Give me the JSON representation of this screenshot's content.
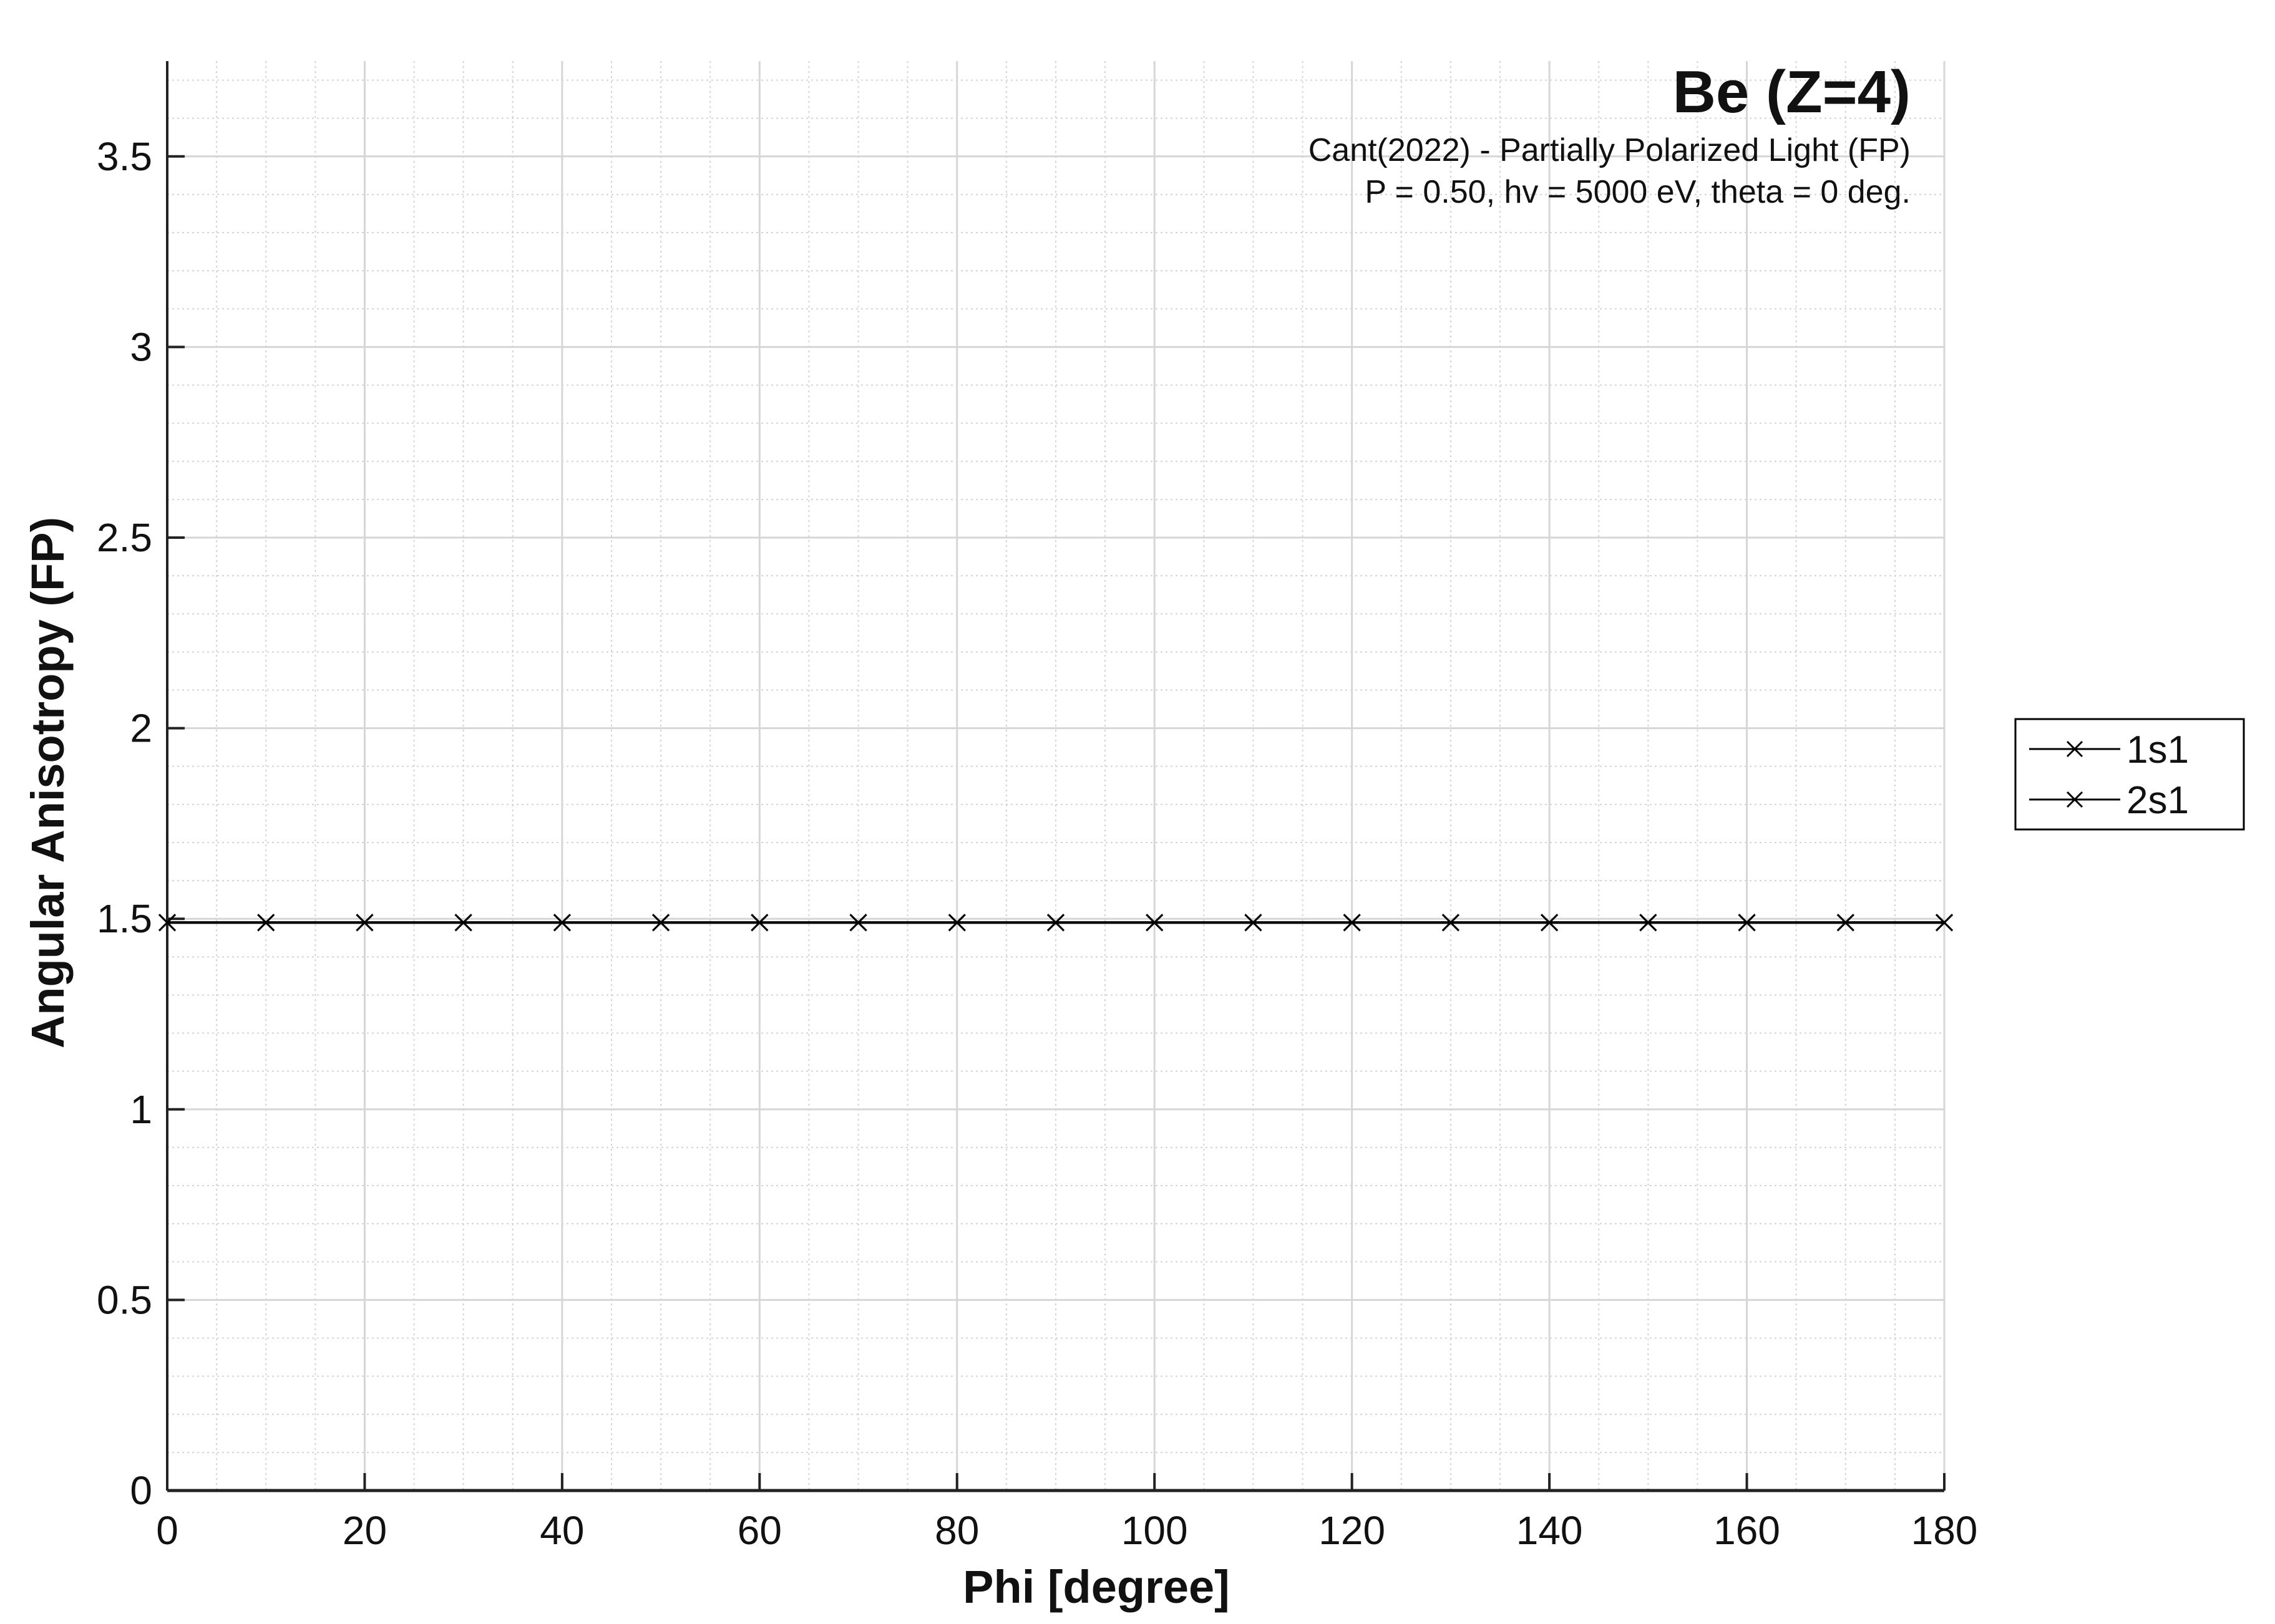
{
  "chart_data": {
    "type": "line",
    "title": "Be (Z=4)",
    "subtitle_lines": [
      "Cant(2022) - Partially Polarized Light (FP)",
      "P = 0.50, hv = 5000 eV, theta = 0 deg."
    ],
    "xlabel": "Phi [degree]",
    "ylabel": "Angular Anisotropy (FP)",
    "xlim": [
      0,
      180
    ],
    "ylim": [
      0,
      3.75
    ],
    "xticks": [
      0,
      20,
      40,
      60,
      80,
      100,
      120,
      140,
      160,
      180
    ],
    "xtick_labels": [
      "0",
      "20",
      "40",
      "60",
      "80",
      "100",
      "120",
      "140",
      "160",
      "180"
    ],
    "yticks": [
      0,
      0.5,
      1,
      1.5,
      2,
      2.5,
      3,
      3.5
    ],
    "ytick_labels": [
      "0",
      "0.5",
      "1",
      "1.5",
      "2",
      "2.5",
      "3",
      "3.5"
    ],
    "grid": true,
    "minor_grid": true,
    "legend_position": "outside-right",
    "x": [
      0,
      10,
      20,
      30,
      40,
      50,
      60,
      70,
      80,
      90,
      100,
      110,
      120,
      130,
      140,
      150,
      160,
      170,
      180
    ],
    "series": [
      {
        "name": "1s1",
        "color": "#000000",
        "marker": "x",
        "values": [
          1.49,
          1.49,
          1.49,
          1.49,
          1.49,
          1.49,
          1.49,
          1.49,
          1.49,
          1.49,
          1.49,
          1.49,
          1.49,
          1.49,
          1.49,
          1.49,
          1.49,
          1.49,
          1.49
        ]
      },
      {
        "name": "2s1",
        "color": "#000000",
        "marker": "x",
        "values": [
          1.49,
          1.49,
          1.49,
          1.49,
          1.49,
          1.49,
          1.49,
          1.49,
          1.49,
          1.49,
          1.49,
          1.49,
          1.49,
          1.49,
          1.49,
          1.49,
          1.49,
          1.49,
          1.49
        ]
      }
    ]
  }
}
